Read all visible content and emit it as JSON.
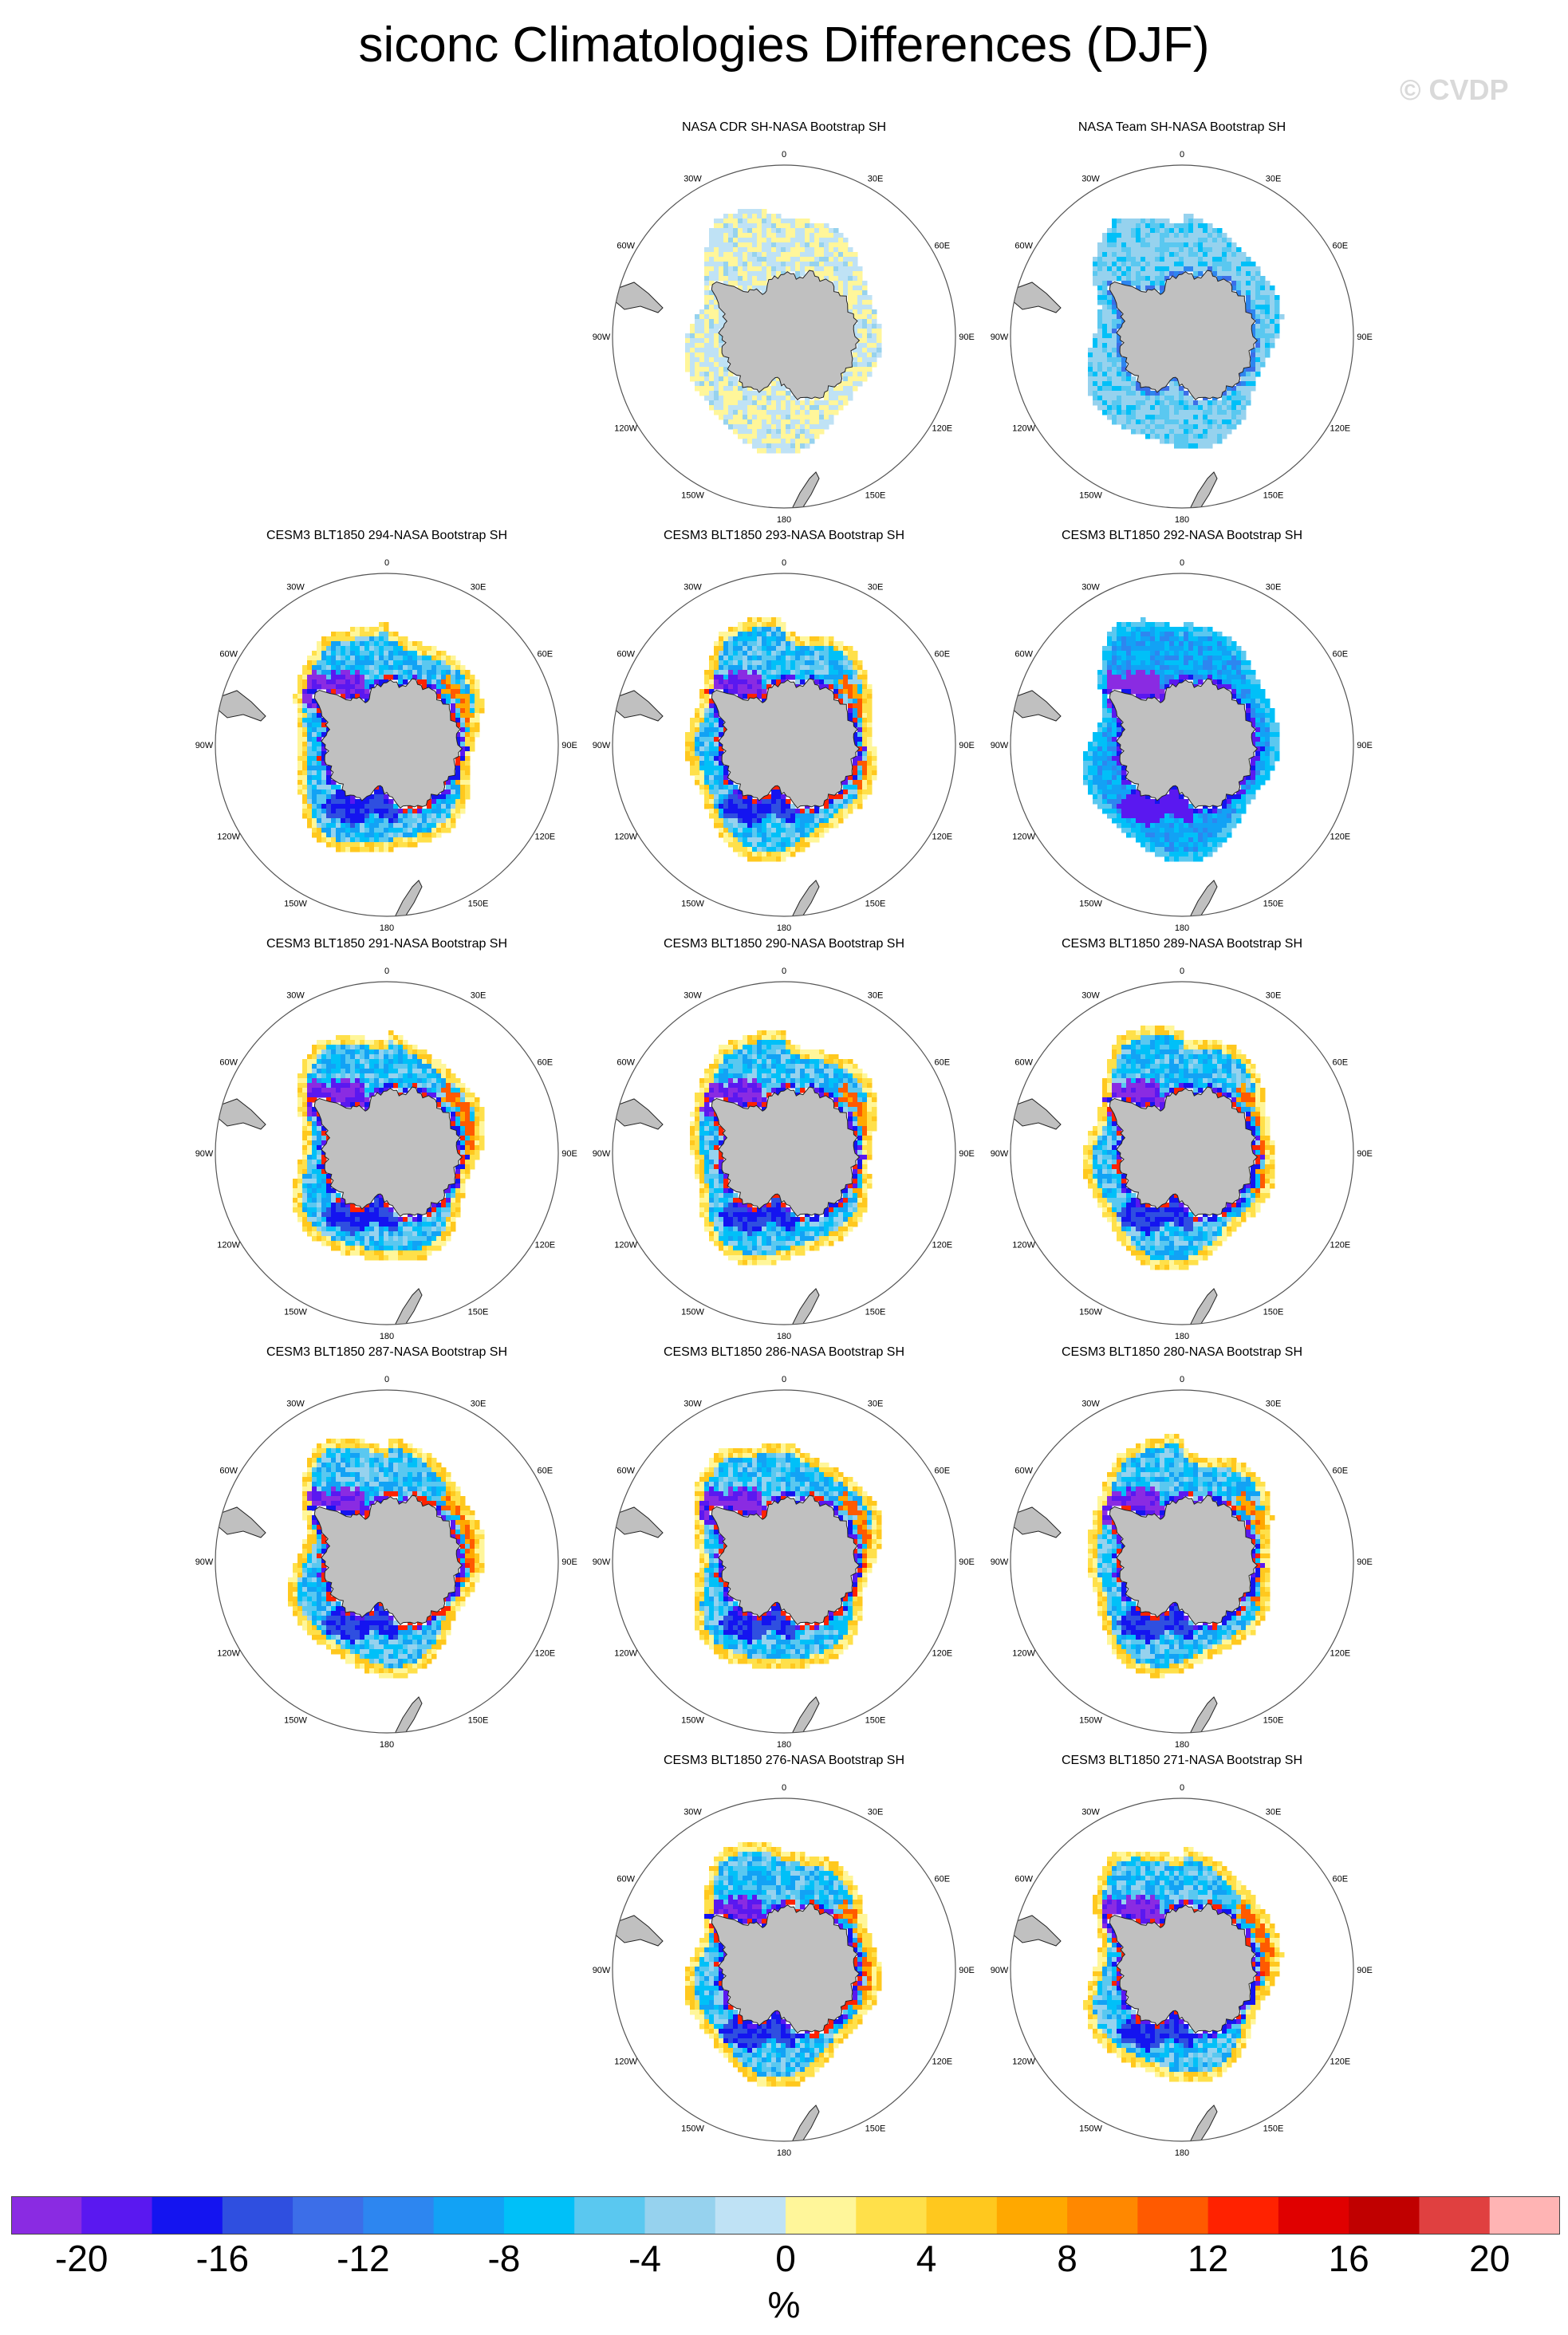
{
  "title": "siconc Climatologies Differences (DJF)",
  "watermark": "© CVDP",
  "map": {
    "longitude_labels": [
      "0",
      "30E",
      "60E",
      "90E",
      "120E",
      "150E",
      "180",
      "150W",
      "120W",
      "90W",
      "60W",
      "30W"
    ],
    "land_color": "#c0c0c0"
  },
  "panels": [
    {
      "row": 0,
      "col": 1,
      "title": "NASA CDR SH-NASA Bootstrap SH",
      "pattern": "cdr"
    },
    {
      "row": 0,
      "col": 2,
      "title": "NASA Team SH-NASA Bootstrap SH",
      "pattern": "team"
    },
    {
      "row": 1,
      "col": 0,
      "title": "CESM3 BLT1850 294-NASA Bootstrap SH",
      "pattern": "model"
    },
    {
      "row": 1,
      "col": 1,
      "title": "CESM3 BLT1850 293-NASA Bootstrap SH",
      "pattern": "model"
    },
    {
      "row": 1,
      "col": 2,
      "title": "CESM3 BLT1850 292-NASA Bootstrap SH",
      "pattern": "model_cold"
    },
    {
      "row": 2,
      "col": 0,
      "title": "CESM3 BLT1850 291-NASA Bootstrap SH",
      "pattern": "model"
    },
    {
      "row": 2,
      "col": 1,
      "title": "CESM3 BLT1850 290-NASA Bootstrap SH",
      "pattern": "model"
    },
    {
      "row": 2,
      "col": 2,
      "title": "CESM3 BLT1850 289-NASA Bootstrap SH",
      "pattern": "model"
    },
    {
      "row": 3,
      "col": 0,
      "title": "CESM3 BLT1850 287-NASA Bootstrap SH",
      "pattern": "model"
    },
    {
      "row": 3,
      "col": 1,
      "title": "CESM3 BLT1850 286-NASA Bootstrap SH",
      "pattern": "model"
    },
    {
      "row": 3,
      "col": 2,
      "title": "CESM3 BLT1850 280-NASA Bootstrap SH",
      "pattern": "model"
    },
    {
      "row": 4,
      "col": 1,
      "title": "CESM3 BLT1850 276-NASA Bootstrap SH",
      "pattern": "model"
    },
    {
      "row": 4,
      "col": 2,
      "title": "CESM3 BLT1850 271-NASA Bootstrap SH",
      "pattern": "model"
    }
  ],
  "colorbar": {
    "colors": [
      "#8a2be2",
      "#5a18f0",
      "#1414f0",
      "#2f4fe0",
      "#3c6ee8",
      "#2d86f0",
      "#12a2f5",
      "#00c0f8",
      "#5ac8f0",
      "#96d2ee",
      "#bfe2f5",
      "#fff69a",
      "#ffe04a",
      "#ffc81e",
      "#ffa800",
      "#ff8800",
      "#ff5a00",
      "#ff2200",
      "#e00000",
      "#c00000",
      "#e04040",
      "#ffb4b4"
    ],
    "tick_labels": [
      "-20",
      "-16",
      "-12",
      "-8",
      "-4",
      "0",
      "4",
      "8",
      "12",
      "16",
      "20"
    ],
    "units": "%"
  }
}
